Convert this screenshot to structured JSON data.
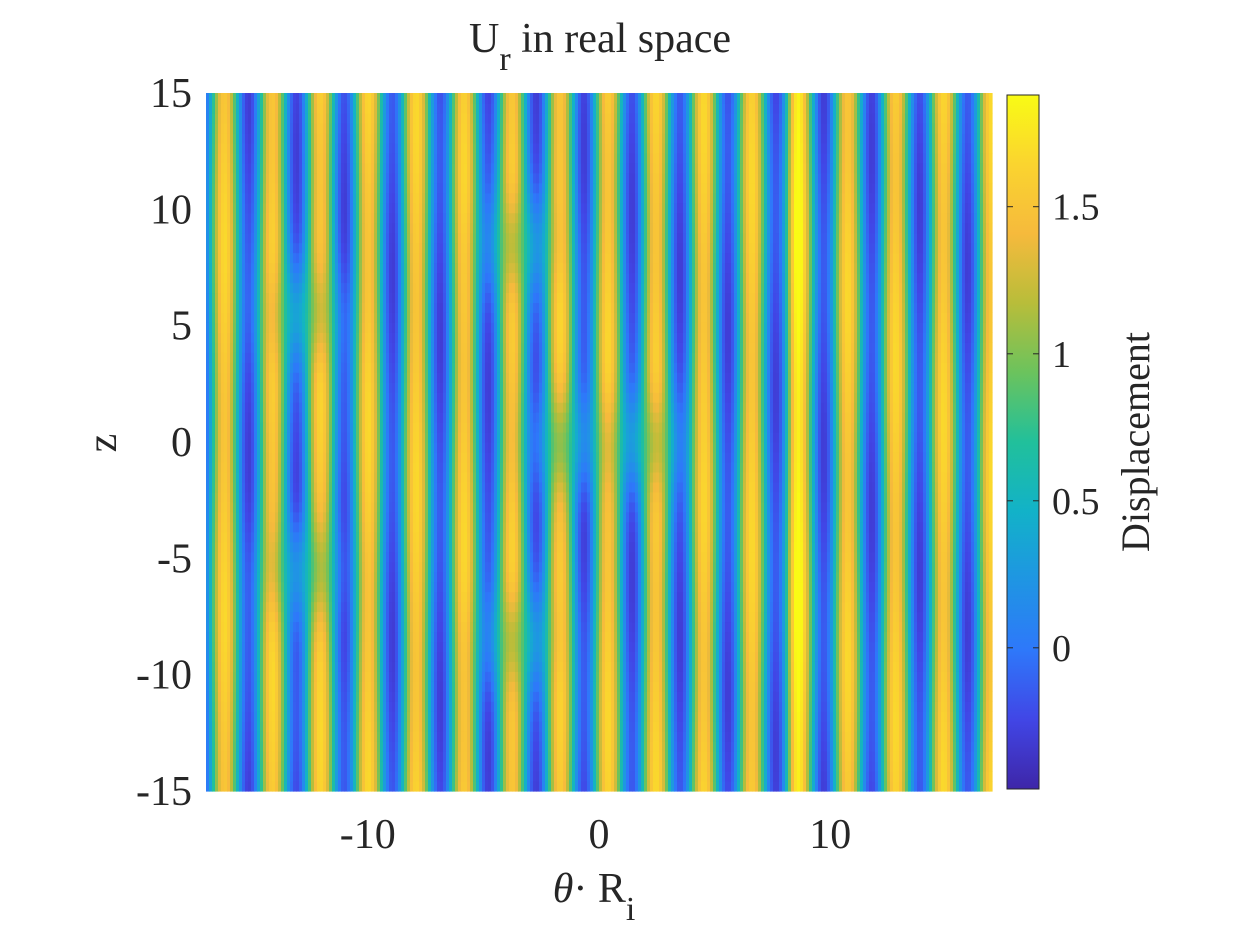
{
  "chart_data": {
    "type": "heatmap",
    "title": {
      "main": "U",
      "sub": "r",
      "rest": " in real space"
    },
    "xlabel": {
      "symbol": "θ",
      "dot": "· R",
      "sub": "i"
    },
    "ylabel": "z",
    "colorbar_label": "Displacement",
    "xlim": [
      -17,
      17
    ],
    "ylim": [
      -15,
      15
    ],
    "clim": [
      -0.48,
      1.88
    ],
    "xticks": [
      {
        "value": -10,
        "label": "-10"
      },
      {
        "value": 0,
        "label": "0"
      },
      {
        "value": 10,
        "label": "10"
      }
    ],
    "yticks": [
      {
        "value": 15,
        "label": "15"
      },
      {
        "value": 10,
        "label": "10"
      },
      {
        "value": 5,
        "label": "5"
      },
      {
        "value": 0,
        "label": "0"
      },
      {
        "value": -5,
        "label": "-5"
      },
      {
        "value": -10,
        "label": "-10"
      },
      {
        "value": -15,
        "label": "-15"
      }
    ],
    "cticks": [
      {
        "value": 1.5,
        "label": "1.5"
      },
      {
        "value": 1,
        "label": "1"
      },
      {
        "value": 0.5,
        "label": "0.5"
      },
      {
        "value": 0,
        "label": "0"
      }
    ],
    "colormap": "parula",
    "colormap_stops": [
      "#3e26a8",
      "#4146e6",
      "#2e78fa",
      "#1f95e3",
      "#12b2c8",
      "#21c09b",
      "#6bc35d",
      "#b8bd3a",
      "#f6ba3c",
      "#fad42f",
      "#f9fb15"
    ],
    "field": {
      "description_free": true,
      "wavenumber": 3.03,
      "phase": -1.2,
      "base_mean": 0.68,
      "base_amplitude": 0.92,
      "max_ridges_x": [
        8.5
      ],
      "defect_regions": [
        {
          "x": -12.8,
          "z": 5.5
        },
        {
          "x": -12.8,
          "z": -5.5
        },
        {
          "x": -3.5,
          "z": 8.5
        },
        {
          "x": -3.5,
          "z": -8.5
        },
        {
          "x": -1.5,
          "z": 0
        },
        {
          "x": 2.0,
          "z": 0
        }
      ]
    }
  }
}
